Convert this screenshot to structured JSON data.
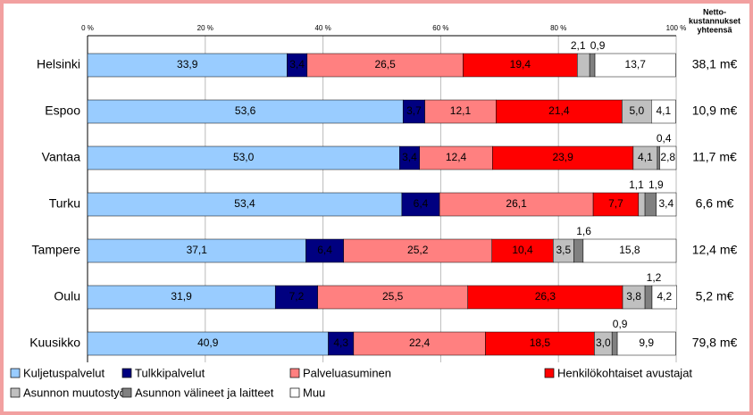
{
  "chart_data": {
    "type": "stacked_barh",
    "categories": [
      "Helsinki",
      "Espoo",
      "Vantaa",
      "Turku",
      "Tampere",
      "Oulu",
      "Kuusikko"
    ],
    "series": [
      {
        "name": "Kuljetuspalvelut",
        "color": "#99ccff",
        "values": [
          33.9,
          53.6,
          53.0,
          53.4,
          37.1,
          31.9,
          40.9
        ],
        "value_labels": [
          "33,9",
          "53,6",
          "53,0",
          "53,4",
          "37,1",
          "31,9",
          "40,9"
        ]
      },
      {
        "name": "Tulkkipalvelut",
        "color": "#000080",
        "values": [
          3.4,
          3.7,
          3.4,
          6.4,
          6.4,
          7.2,
          4.3
        ],
        "value_labels": [
          "3,4",
          "3,7",
          "3,4",
          "6,4",
          "6,4",
          "7,2",
          "4,3"
        ]
      },
      {
        "name": "Palveluasuminen",
        "color": "#ff8080",
        "values": [
          26.5,
          12.1,
          12.4,
          26.1,
          25.2,
          25.5,
          22.4
        ],
        "value_labels": [
          "26,5",
          "12,1",
          "12,4",
          "26,1",
          "25,2",
          "25,5",
          "22,4"
        ]
      },
      {
        "name": "Henkilökohtaiset avustajat",
        "color": "#ff0000",
        "values": [
          19.4,
          21.4,
          23.9,
          7.7,
          10.4,
          26.3,
          18.5
        ],
        "value_labels": [
          "19,4",
          "21,4",
          "23,9",
          "7,7",
          "10,4",
          "26,3",
          "18,5"
        ]
      },
      {
        "name": "Asunnon muutostyöt",
        "color": "#c0c0c0",
        "values": [
          2.1,
          5.0,
          4.1,
          1.1,
          3.5,
          3.8,
          3.0
        ],
        "value_labels": [
          "2,1",
          "5,0",
          "4,1",
          "1,1",
          "3,5",
          "3,8",
          "3,0"
        ]
      },
      {
        "name": "Asunnon välineet ja laitteet",
        "color": "#808080",
        "values": [
          0.9,
          null,
          0.4,
          1.9,
          1.6,
          1.2,
          0.9
        ],
        "value_labels": [
          "0,9",
          null,
          "0,4",
          "1,9",
          "1,6",
          "1,2",
          "0,9"
        ]
      },
      {
        "name": "Muu",
        "color": "#ffffff",
        "values": [
          13.7,
          4.1,
          2.8,
          3.4,
          15.8,
          4.2,
          9.9
        ],
        "value_labels": [
          "13,7",
          "4,1",
          "2,8",
          "3,4",
          "15,8",
          "4,2",
          "9,9"
        ]
      }
    ],
    "xlim": [
      0,
      100
    ],
    "xticks": [
      {
        "value": 0,
        "label": "0 %"
      },
      {
        "value": 20,
        "label": "20 %"
      },
      {
        "value": 40,
        "label": "40 %"
      },
      {
        "value": 60,
        "label": "60 %"
      },
      {
        "value": 80,
        "label": "80 %"
      },
      {
        "value": 100,
        "label": "100 %"
      }
    ],
    "grid": true,
    "total_header": [
      "Netto-",
      "kustannukset",
      "yhteensä"
    ],
    "totals": [
      "38,1 m€",
      "10,9 m€",
      "11,7 m€",
      "6,6 m€",
      "12,4 m€",
      "5,2 m€",
      "79,8 m€"
    ]
  }
}
